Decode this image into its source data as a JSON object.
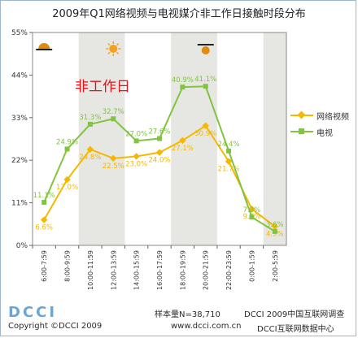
{
  "chart_data": {
    "type": "line",
    "title": "2009年Q1网络视频与电视媒介非工作日接触时段分布",
    "categories": [
      "6:00-7:59",
      "8:00-9:59",
      "10:00-11:59",
      "12:00-13:59",
      "14:00-15:59",
      "16:00-17:59",
      "18:00-19:59",
      "20:00-21:59",
      "22:00-23:59",
      "0:00-1:59",
      "2:00-5:59"
    ],
    "y_ticks": [
      "0%",
      "11%",
      "22%",
      "33%",
      "44%",
      "55%"
    ],
    "ylim": [
      0,
      55
    ],
    "series": [
      {
        "name": "网络视频",
        "color": "#f5b800",
        "values": [
          6.6,
          17.0,
          24.8,
          22.5,
          23.0,
          24.0,
          27.1,
          30.9,
          21.7,
          9.4,
          4.9
        ],
        "labels": [
          "6.6%",
          "17.0%",
          "24.8%",
          "22.5%",
          "23.0%",
          "24.0%",
          "27.1%",
          "30.9%",
          "21.7%",
          "9.4%",
          "4.9%"
        ]
      },
      {
        "name": "电视",
        "color": "#82c341",
        "values": [
          11.1,
          24.9,
          31.3,
          32.7,
          27.0,
          27.6,
          40.9,
          41.1,
          24.4,
          7.3,
          3.6
        ],
        "labels": [
          "11.1%",
          "24.9%",
          "31.3%",
          "32.7%",
          "27.0%",
          "27.6%",
          "40.9%",
          "41.1%",
          "24.4%",
          "7.3%",
          "3.6%"
        ]
      }
    ],
    "shaded_categories": [
      2,
      3,
      6,
      7,
      10
    ],
    "grid": false,
    "legend_position": "right"
  },
  "watermark": "非工作日",
  "footer": {
    "logo": "DCCI",
    "copyright": "Copyright  ©DCCI  2009",
    "sample": "样本量N=38,710",
    "dcci_line": "DCCI 2009中国互联网调查",
    "site": "www.dcci.com.cn",
    "center": "DCCI互联网数据中心"
  }
}
